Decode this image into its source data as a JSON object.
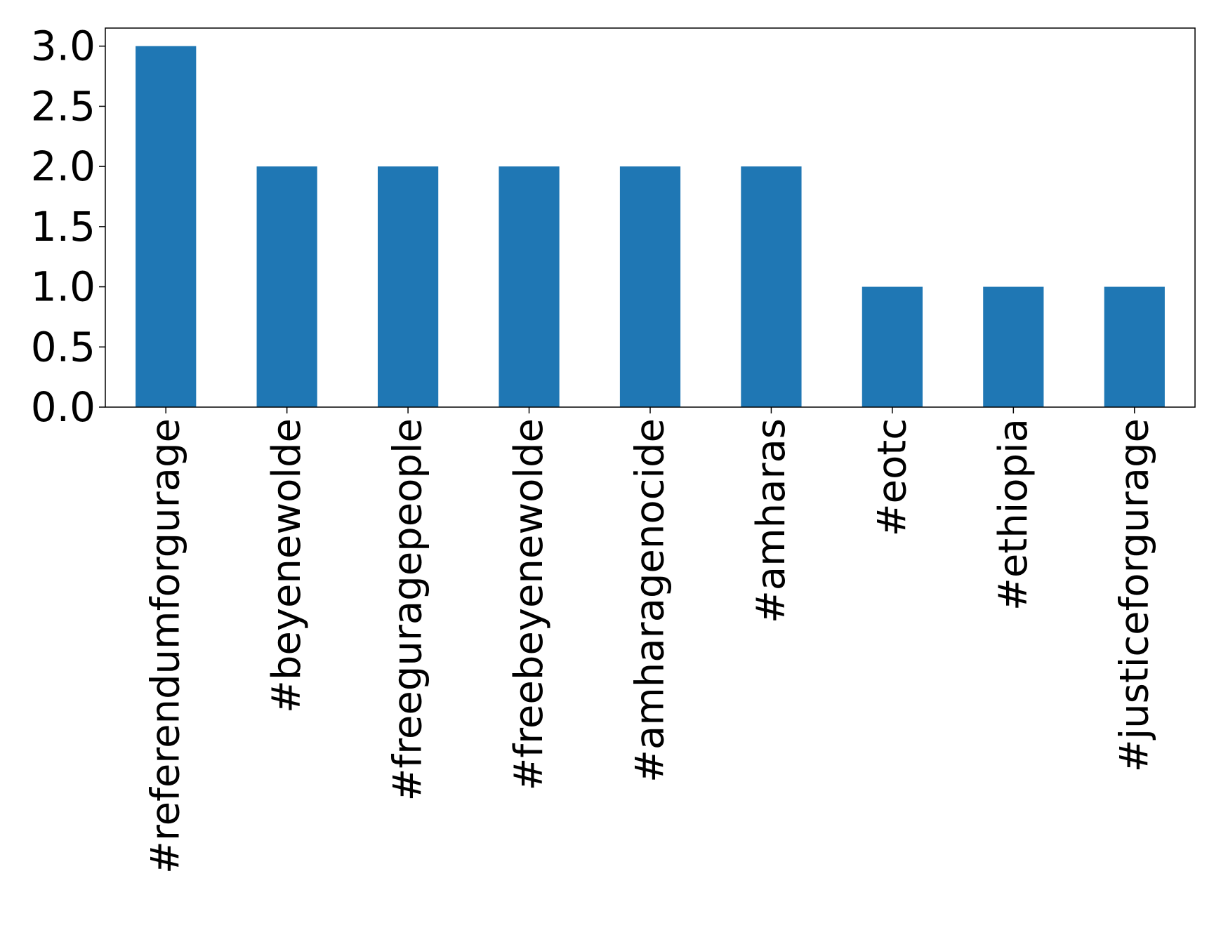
{
  "chart_data": {
    "type": "bar",
    "categories": [
      "#referendumforgurage",
      "#beyenewolde",
      "#freeguragepeople",
      "#freebeyenewolde",
      "#amharagenocide",
      "#amharas",
      "#eotc",
      "#ethiopia",
      "#justiceforgurage"
    ],
    "values": [
      3,
      2,
      2,
      2,
      2,
      2,
      1,
      1,
      1
    ],
    "y_ticks": [
      "0.0",
      "0.5",
      "1.0",
      "1.5",
      "2.0",
      "2.5",
      "3.0"
    ],
    "ylim": [
      0,
      3.15
    ],
    "title": "",
    "xlabel": "",
    "ylabel": "",
    "grid": false,
    "bar_color": "#1f77b4",
    "axis_color": "#000000"
  }
}
